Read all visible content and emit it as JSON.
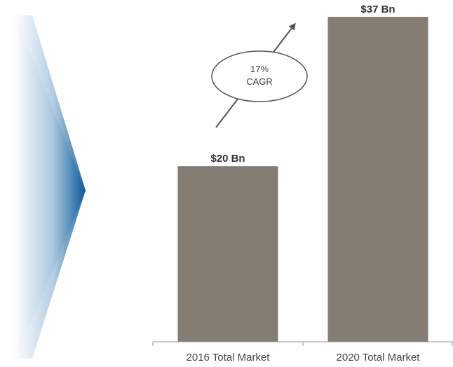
{
  "chart_data": {
    "type": "bar",
    "categories": [
      "2016 Total Market",
      "2020 Total Market"
    ],
    "values": [
      20,
      37
    ],
    "value_labels": [
      "$20 Bn",
      "$37 Bn"
    ],
    "ylim": [
      0,
      37
    ],
    "grid": false,
    "legend": "none",
    "annotation": {
      "lines": [
        "17%",
        "CAGR"
      ]
    }
  },
  "colors": {
    "bar": "#857c73",
    "arrow_accent": "#0a5b9a",
    "axis": "#9a9a9a",
    "annotation_stroke": "#555555"
  }
}
